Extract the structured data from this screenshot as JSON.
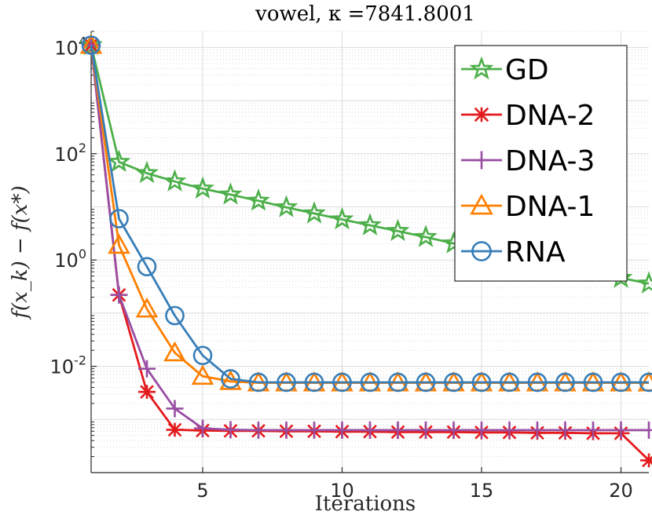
{
  "chart_data": {
    "type": "line",
    "title": "vowel, κ =7841.8001",
    "xlabel": "Iterations",
    "ylabel": "f(x_k) − f(x*)",
    "xlim": [
      1,
      21
    ],
    "ylim": [
      0.0001,
      20000
    ],
    "yscale": "log",
    "grid": true,
    "minor_grid": true,
    "legend_position": "top-right",
    "xticks": [
      5,
      10,
      15,
      20
    ],
    "xtick_labels": [
      "5",
      "10",
      "15",
      "20"
    ],
    "yticks": [
      0.01,
      1,
      100,
      10000
    ],
    "ytick_labels": [
      {
        "base": "10",
        "exp": "-2"
      },
      {
        "base": "10",
        "exp": "0"
      },
      {
        "base": "10",
        "exp": "2"
      },
      {
        "base": "10",
        "exp": "4"
      }
    ],
    "x": [
      1,
      2,
      3,
      4,
      5,
      6,
      7,
      8,
      9,
      10,
      11,
      12,
      13,
      14,
      15,
      16,
      17,
      18,
      19,
      20,
      21
    ],
    "series": [
      {
        "name": "GD",
        "marker": "star",
        "color": "#4daf4a",
        "values": [
          11000,
          70,
          43,
          30,
          22,
          17,
          13,
          9.8,
          7.5,
          5.8,
          4.5,
          3.5,
          2.7,
          2.05,
          1.6,
          1.25,
          0.97,
          0.76,
          0.59,
          0.46,
          0.36
        ]
      },
      {
        "name": "DNA-2",
        "marker": "asterisk",
        "color": "#e41a1c",
        "values": [
          11000,
          0.22,
          0.0033,
          0.00064,
          0.00062,
          0.00061,
          0.00061,
          0.0006,
          0.0006,
          0.00059,
          0.00059,
          0.00058,
          0.00058,
          0.00058,
          0.00057,
          0.00057,
          0.00056,
          0.00056,
          0.00055,
          0.00055,
          0.00017
        ]
      },
      {
        "name": "DNA-3",
        "marker": "plus",
        "color": "#984ea3",
        "values": [
          11000,
          0.22,
          0.009,
          0.0016,
          0.00068,
          0.00064,
          0.00063,
          0.00063,
          0.00063,
          0.00063,
          0.00063,
          0.00063,
          0.00063,
          0.00063,
          0.00063,
          0.00063,
          0.00063,
          0.00063,
          0.00063,
          0.00063,
          0.00063
        ]
      },
      {
        "name": "DNA-1",
        "marker": "triangle",
        "color": "#ff7f00",
        "values": [
          11000,
          1.9,
          0.12,
          0.018,
          0.0065,
          0.0052,
          0.0049,
          0.0049,
          0.0049,
          0.0049,
          0.0049,
          0.0049,
          0.0049,
          0.0049,
          0.0049,
          0.0049,
          0.0049,
          0.0049,
          0.0049,
          0.0049,
          0.0049
        ]
      },
      {
        "name": "RNA",
        "marker": "circle",
        "color": "#377eb8",
        "values": [
          11000,
          6,
          0.75,
          0.09,
          0.016,
          0.0058,
          0.005,
          0.005,
          0.005,
          0.005,
          0.005,
          0.005,
          0.005,
          0.005,
          0.005,
          0.005,
          0.005,
          0.005,
          0.005,
          0.005,
          0.005
        ]
      }
    ]
  }
}
